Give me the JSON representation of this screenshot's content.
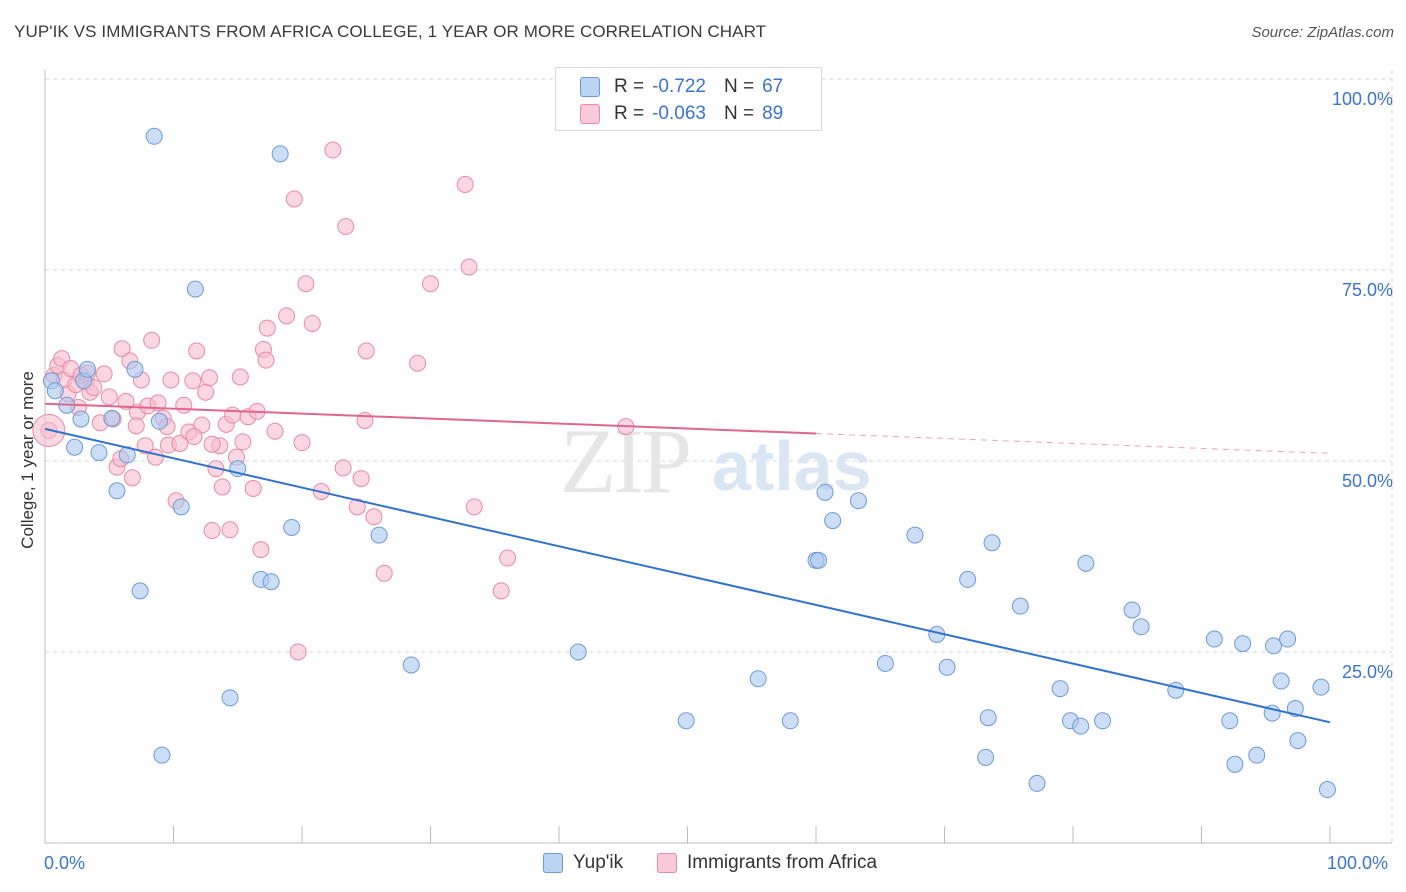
{
  "title": "YUP'IK VS IMMIGRANTS FROM AFRICA COLLEGE, 1 YEAR OR MORE CORRELATION CHART",
  "source": "Source: ZipAtlas.com",
  "watermark": {
    "zip": "ZIP",
    "atlas": "atlas"
  },
  "legend": {
    "series1": {
      "r_label": "R =",
      "r_value": "-0.722",
      "n_label": "N =",
      "n_value": "67"
    },
    "series2": {
      "r_label": "R =",
      "r_value": "-0.063",
      "n_label": "N =",
      "n_value": "89"
    }
  },
  "bottom_legend": {
    "series1": "Yup'ik",
    "series2": "Immigrants from Africa"
  },
  "colors": {
    "blue_fill": "#aac8ef",
    "blue_stroke": "#6d9ad8",
    "blue_line": "#2f72d0",
    "pink_fill": "#f7bccd",
    "pink_stroke": "#e98aa7",
    "pink_line": "#e0668f",
    "tick_text": "#3b74d0",
    "grid": "#d5d5d5"
  },
  "chart_data": {
    "type": "scatter",
    "title": "YUP'IK VS IMMIGRANTS FROM AFRICA COLLEGE, 1 YEAR OR MORE CORRELATION CHART",
    "xlabel": "",
    "ylabel": "College, 1 year or more",
    "xlim": [
      0,
      100
    ],
    "ylim": [
      0,
      100
    ],
    "x_tick_labels": [
      "0.0%",
      "100.0%"
    ],
    "y_ticks": [
      25,
      50,
      75,
      100
    ],
    "y_tick_labels": [
      "25.0%",
      "50.0%",
      "75.0%",
      "100.0%"
    ],
    "grid": true,
    "legend_position": "top-center",
    "series": [
      {
        "name": "Yup'ik",
        "R": -0.722,
        "N": 67,
        "trend": {
          "x": [
            0,
            100
          ],
          "y": [
            54.2,
            15.8
          ]
        },
        "points": [
          [
            0.5,
            60.5
          ],
          [
            0.8,
            59.2
          ],
          [
            1.7,
            57.3
          ],
          [
            2.3,
            51.8
          ],
          [
            2.8,
            55.5
          ],
          [
            3.0,
            60.5
          ],
          [
            3.3,
            62.0
          ],
          [
            4.2,
            51.1
          ],
          [
            5.2,
            55.6
          ],
          [
            5.6,
            46.1
          ],
          [
            6.4,
            50.8
          ],
          [
            7.0,
            62.0
          ],
          [
            7.4,
            33.0
          ],
          [
            8.5,
            92.5
          ],
          [
            8.9,
            55.2
          ],
          [
            9.1,
            11.5
          ],
          [
            10.6,
            44.0
          ],
          [
            11.7,
            72.5
          ],
          [
            14.4,
            19.0
          ],
          [
            15.0,
            49.0
          ],
          [
            16.8,
            34.5
          ],
          [
            17.6,
            34.2
          ],
          [
            18.3,
            90.2
          ],
          [
            19.2,
            41.3
          ],
          [
            26.0,
            40.3
          ],
          [
            28.5,
            23.3
          ],
          [
            41.5,
            25.0
          ],
          [
            49.9,
            16.0
          ],
          [
            55.5,
            21.5
          ],
          [
            58.0,
            16.0
          ],
          [
            60.0,
            37.0
          ],
          [
            60.2,
            37.0
          ],
          [
            60.7,
            45.9
          ],
          [
            61.3,
            42.2
          ],
          [
            63.3,
            44.8
          ],
          [
            65.4,
            23.5
          ],
          [
            67.7,
            40.3
          ],
          [
            69.4,
            27.3
          ],
          [
            70.2,
            23.0
          ],
          [
            71.8,
            34.5
          ],
          [
            73.2,
            11.2
          ],
          [
            73.4,
            16.4
          ],
          [
            73.7,
            39.3
          ],
          [
            75.9,
            31.0
          ],
          [
            77.2,
            7.8
          ],
          [
            79.0,
            20.2
          ],
          [
            79.8,
            16.0
          ],
          [
            80.6,
            15.3
          ],
          [
            81.0,
            36.6
          ],
          [
            82.3,
            16.0
          ],
          [
            84.6,
            30.5
          ],
          [
            85.3,
            28.3
          ],
          [
            88.0,
            20.0
          ],
          [
            91.0,
            26.7
          ],
          [
            92.2,
            16.0
          ],
          [
            92.6,
            10.3
          ],
          [
            93.2,
            26.1
          ],
          [
            94.3,
            11.5
          ],
          [
            95.5,
            17.0
          ],
          [
            95.6,
            25.8
          ],
          [
            96.2,
            21.2
          ],
          [
            96.7,
            26.7
          ],
          [
            97.3,
            17.6
          ],
          [
            97.5,
            13.4
          ],
          [
            99.3,
            20.4
          ],
          [
            99.8,
            7.0
          ],
          [
            45.2,
            54.5
          ]
        ]
      },
      {
        "name": "Immigrants from Africa",
        "R": -0.063,
        "N": 89,
        "trend": {
          "x": [
            0,
            100
          ],
          "y": [
            57.5,
            51.0
          ]
        },
        "trend_solid_until": 60,
        "points": [
          [
            0.3,
            54.0
          ],
          [
            0.7,
            61.2
          ],
          [
            1.0,
            62.5
          ],
          [
            1.3,
            63.4
          ],
          [
            1.5,
            60.6
          ],
          [
            1.8,
            58.8
          ],
          [
            2.0,
            62.1
          ],
          [
            2.4,
            60.0
          ],
          [
            2.8,
            61.2
          ],
          [
            3.2,
            60.3
          ],
          [
            3.5,
            59.0
          ],
          [
            3.8,
            59.6
          ],
          [
            4.3,
            55.0
          ],
          [
            4.6,
            61.4
          ],
          [
            5.0,
            58.4
          ],
          [
            5.3,
            55.5
          ],
          [
            5.6,
            49.2
          ],
          [
            6.0,
            64.7
          ],
          [
            6.3,
            57.8
          ],
          [
            6.6,
            63.1
          ],
          [
            6.8,
            47.8
          ],
          [
            7.2,
            56.4
          ],
          [
            7.5,
            60.6
          ],
          [
            7.8,
            52.0
          ],
          [
            8.0,
            57.2
          ],
          [
            8.3,
            65.8
          ],
          [
            8.6,
            50.5
          ],
          [
            8.8,
            57.6
          ],
          [
            9.2,
            55.6
          ],
          [
            9.6,
            52.1
          ],
          [
            9.8,
            60.6
          ],
          [
            10.2,
            44.8
          ],
          [
            10.5,
            52.3
          ],
          [
            10.8,
            57.3
          ],
          [
            11.2,
            53.8
          ],
          [
            11.5,
            60.5
          ],
          [
            11.8,
            64.4
          ],
          [
            12.2,
            54.7
          ],
          [
            12.5,
            59.0
          ],
          [
            12.8,
            60.9
          ],
          [
            13.0,
            40.9
          ],
          [
            13.3,
            49.0
          ],
          [
            13.6,
            52.0
          ],
          [
            13.8,
            46.6
          ],
          [
            14.1,
            54.8
          ],
          [
            14.4,
            41.0
          ],
          [
            14.6,
            56.0
          ],
          [
            14.9,
            50.5
          ],
          [
            15.2,
            61.0
          ],
          [
            15.4,
            52.5
          ],
          [
            15.8,
            55.8
          ],
          [
            16.2,
            46.4
          ],
          [
            16.5,
            56.5
          ],
          [
            16.8,
            38.4
          ],
          [
            17.0,
            64.6
          ],
          [
            17.2,
            63.2
          ],
          [
            17.3,
            67.4
          ],
          [
            17.9,
            53.9
          ],
          [
            18.8,
            69.0
          ],
          [
            19.4,
            84.3
          ],
          [
            19.7,
            25.0
          ],
          [
            20.0,
            52.4
          ],
          [
            20.3,
            73.2
          ],
          [
            20.8,
            68.0
          ],
          [
            21.5,
            46.0
          ],
          [
            22.4,
            90.7
          ],
          [
            23.2,
            49.1
          ],
          [
            23.4,
            80.7
          ],
          [
            24.3,
            44.0
          ],
          [
            24.6,
            47.7
          ],
          [
            24.9,
            55.3
          ],
          [
            25.0,
            64.4
          ],
          [
            25.6,
            42.7
          ],
          [
            26.4,
            35.3
          ],
          [
            29.0,
            62.8
          ],
          [
            30.0,
            73.2
          ],
          [
            32.7,
            86.2
          ],
          [
            33.0,
            75.4
          ],
          [
            33.4,
            44.0
          ],
          [
            35.5,
            33.0
          ],
          [
            36.0,
            37.3
          ],
          [
            13.0,
            52.2
          ],
          [
            9.5,
            54.5
          ],
          [
            11.6,
            53.2
          ],
          [
            7.1,
            54.6
          ],
          [
            3.3,
            61.5
          ],
          [
            2.6,
            57.0
          ],
          [
            45.2,
            54.5
          ],
          [
            5.9,
            50.3
          ]
        ]
      }
    ]
  }
}
